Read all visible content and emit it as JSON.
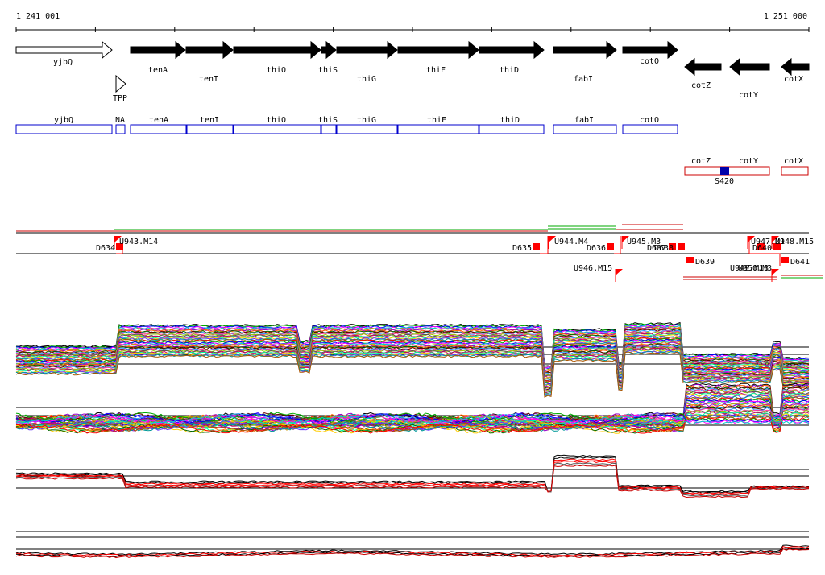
{
  "coords": {
    "start": "1 241 001",
    "end": "1 251 000"
  },
  "genes": [
    {
      "name": "yjbQ",
      "filled": false,
      "dir": "right",
      "labelRow": "top"
    },
    {
      "name": "tenA",
      "filled": true,
      "dir": "right",
      "labelRow": "top"
    },
    {
      "name": "tenI",
      "filled": true,
      "dir": "right",
      "labelRow": "bottom"
    },
    {
      "name": "thiO",
      "filled": true,
      "dir": "right",
      "labelRow": "top"
    },
    {
      "name": "thiS",
      "filled": true,
      "dir": "right",
      "labelRow": "top"
    },
    {
      "name": "thiG",
      "filled": true,
      "dir": "right",
      "labelRow": "bottom"
    },
    {
      "name": "thiF",
      "filled": true,
      "dir": "right",
      "labelRow": "top"
    },
    {
      "name": "thiD",
      "filled": true,
      "dir": "right",
      "labelRow": "top"
    },
    {
      "name": "fabI",
      "filled": true,
      "dir": "right",
      "labelRow": "bottom"
    },
    {
      "name": "cotO",
      "filled": true,
      "dir": "right",
      "labelRow": "top"
    },
    {
      "name": "cotZ",
      "filled": true,
      "dir": "left",
      "labelRow": "bottom"
    },
    {
      "name": "cotY",
      "filled": true,
      "dir": "left",
      "labelRow": "bottom"
    },
    {
      "name": "cotX",
      "filled": true,
      "dir": "left",
      "labelRow": "bottom"
    }
  ],
  "riboswitch": "TPP",
  "transcripts_forward": [
    "yjbQ",
    "NA",
    "tenA",
    "tenI",
    "thiO",
    "thiS",
    "thiG",
    "thiF",
    "thiD",
    "fabI",
    "cotO"
  ],
  "transcripts_reverse": [
    "cotZ",
    "cotY",
    "cotX"
  ],
  "promoter_site": "S420",
  "upshifts": [
    "U943.M14",
    "U944.M4",
    "U945.M3",
    "U946.M15",
    "U947.M1",
    "U948.M15",
    "U949.M13",
    "U950.M3"
  ],
  "downshifts": [
    "D634",
    "D635",
    "D636",
    "D637",
    "D638",
    "D639",
    "D640",
    "D641"
  ],
  "colors": {
    "gene": "#000000",
    "transcript": "#0000cc",
    "reverse_transcript": "#cc0000",
    "site": "#0000aa",
    "marker": "#ff0000",
    "track_upper": "#00aa00"
  }
}
